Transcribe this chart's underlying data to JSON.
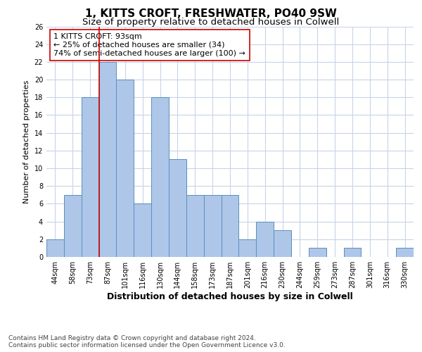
{
  "title": "1, KITTS CROFT, FRESHWATER, PO40 9SW",
  "subtitle": "Size of property relative to detached houses in Colwell",
  "xlabel": "Distribution of detached houses by size in Colwell",
  "ylabel": "Number of detached properties",
  "categories": [
    "44sqm",
    "58sqm",
    "73sqm",
    "87sqm",
    "101sqm",
    "116sqm",
    "130sqm",
    "144sqm",
    "158sqm",
    "173sqm",
    "187sqm",
    "201sqm",
    "216sqm",
    "230sqm",
    "244sqm",
    "259sqm",
    "273sqm",
    "287sqm",
    "301sqm",
    "316sqm",
    "330sqm"
  ],
  "values": [
    2,
    7,
    18,
    22,
    20,
    6,
    18,
    11,
    7,
    7,
    7,
    2,
    4,
    3,
    0,
    1,
    0,
    1,
    0,
    0,
    1
  ],
  "bar_color": "#aec6e8",
  "bar_edge_color": "#5a8fc0",
  "vline_color": "#cc0000",
  "vline_x_index": 3,
  "annotation_text": "1 KITTS CROFT: 93sqm\n← 25% of detached houses are smaller (34)\n74% of semi-detached houses are larger (100) →",
  "annotation_box_color": "#ffffff",
  "annotation_box_edge_color": "#cc0000",
  "ylim": [
    0,
    26
  ],
  "yticks": [
    0,
    2,
    4,
    6,
    8,
    10,
    12,
    14,
    16,
    18,
    20,
    22,
    24,
    26
  ],
  "footer_line1": "Contains HM Land Registry data © Crown copyright and database right 2024.",
  "footer_line2": "Contains public sector information licensed under the Open Government Licence v3.0.",
  "background_color": "#ffffff",
  "grid_color": "#c8d4e8",
  "title_fontsize": 11,
  "subtitle_fontsize": 9.5,
  "xlabel_fontsize": 9,
  "ylabel_fontsize": 8,
  "tick_fontsize": 7,
  "annotation_fontsize": 8,
  "footer_fontsize": 6.5
}
